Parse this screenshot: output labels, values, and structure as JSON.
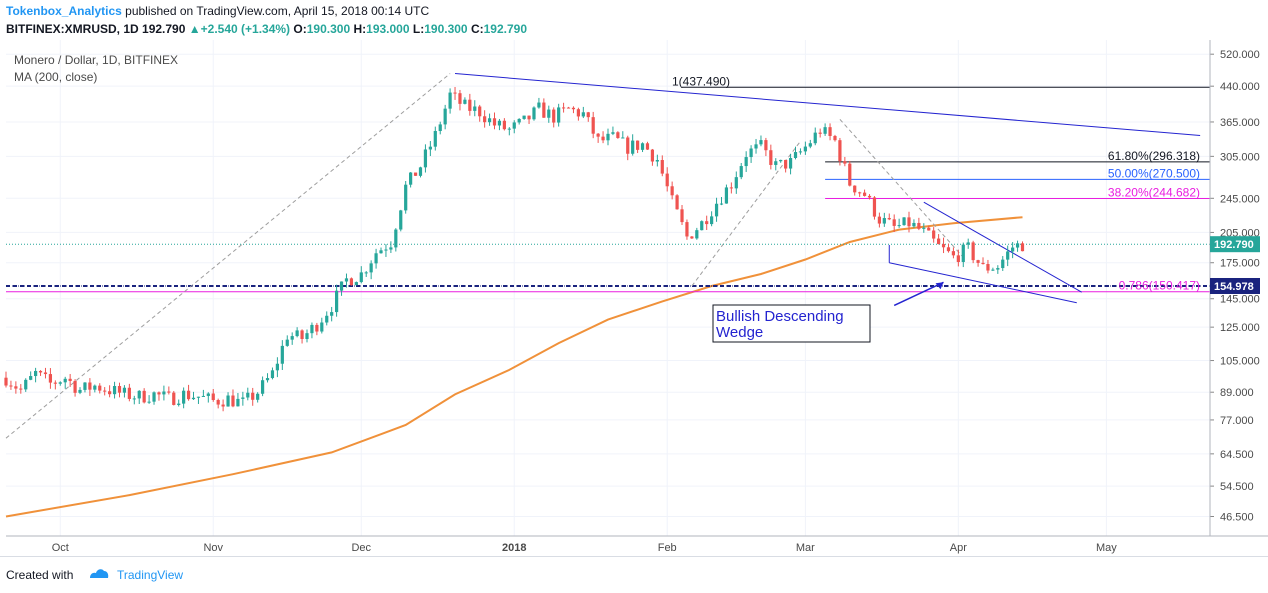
{
  "header": {
    "author": "Tokenbox_Analytics",
    "published_text": " published on TradingView.com, April 15, 2018 00:14 UTC",
    "symbol": "BITFINEX:XMRUSD, 1D",
    "price": "192.790",
    "change": "+2.540 (+1.34%)",
    "o_label": "O:",
    "o_value": "190.300",
    "h_label": "H:",
    "h_value": "193.000",
    "l_label": "L:",
    "l_value": "190.300",
    "c_label": "C:",
    "c_value": "192.790"
  },
  "footer": {
    "created_with": "Created with",
    "brand": "TradingView"
  },
  "colors": {
    "up": "#26a69a",
    "down": "#ef5350",
    "ma": "#f0913a",
    "trendline": "#2424d0",
    "fib_pink": "#e91ee0",
    "fib_blue": "#2962ff",
    "support": "#1a237e",
    "grid": "#f0f3fa"
  },
  "chart_data": {
    "type": "candlestick",
    "title": "Monero / Dollar, 1D, BITFINEX",
    "indicator": "MA (200, close)",
    "y_scale": "log",
    "y_ticks": [
      "520.000",
      "440.000",
      "365.000",
      "305.000",
      "245.000",
      "205.000",
      "175.000",
      "145.000",
      "125.000",
      "105.000",
      "89.000",
      "77.000",
      "64.500",
      "54.500",
      "46.500"
    ],
    "y_range": [
      42,
      560
    ],
    "x_ticks": [
      {
        "label": "Oct",
        "date": "2017-10-01"
      },
      {
        "label": "Nov",
        "date": "2017-11-01"
      },
      {
        "label": "Dec",
        "date": "2017-12-01"
      },
      {
        "label": "2018",
        "date": "2018-01-01"
      },
      {
        "label": "Feb",
        "date": "2018-02-01"
      },
      {
        "label": "Mar",
        "date": "2018-03-01"
      },
      {
        "label": "Apr",
        "date": "2018-04-01"
      },
      {
        "label": "May",
        "date": "2018-05-01"
      }
    ],
    "x_range": [
      "2017-09-20",
      "2018-05-22"
    ],
    "candles": [
      [
        "2017-09-20",
        96
      ],
      [
        "2017-09-23",
        90
      ],
      [
        "2017-09-26",
        98
      ],
      [
        "2017-09-29",
        93
      ],
      [
        "2017-10-02",
        96
      ],
      [
        "2017-10-05",
        90
      ],
      [
        "2017-10-08",
        92
      ],
      [
        "2017-10-11",
        90
      ],
      [
        "2017-10-14",
        88
      ],
      [
        "2017-10-17",
        87
      ],
      [
        "2017-10-20",
        88
      ],
      [
        "2017-10-23",
        86
      ],
      [
        "2017-10-26",
        88
      ],
      [
        "2017-10-29",
        87
      ],
      [
        "2017-11-01",
        85
      ],
      [
        "2017-11-04",
        86
      ],
      [
        "2017-11-07",
        84
      ],
      [
        "2017-11-10",
        89
      ],
      [
        "2017-11-13",
        98
      ],
      [
        "2017-11-16",
        120
      ],
      [
        "2017-11-19",
        118
      ],
      [
        "2017-11-22",
        127
      ],
      [
        "2017-11-25",
        140
      ],
      [
        "2017-11-28",
        160
      ],
      [
        "2017-12-01",
        165
      ],
      [
        "2017-12-04",
        185
      ],
      [
        "2017-12-07",
        195
      ],
      [
        "2017-12-10",
        260
      ],
      [
        "2017-12-13",
        290
      ],
      [
        "2017-12-16",
        340
      ],
      [
        "2017-12-19",
        420
      ],
      [
        "2017-12-22",
        395
      ],
      [
        "2017-12-25",
        385
      ],
      [
        "2017-12-28",
        360
      ],
      [
        "2017-12-31",
        350
      ],
      [
        "2018-01-03",
        365
      ],
      [
        "2018-01-06",
        390
      ],
      [
        "2018-01-09",
        375
      ],
      [
        "2018-01-12",
        390
      ],
      [
        "2018-01-15",
        380
      ],
      [
        "2018-01-18",
        330
      ],
      [
        "2018-01-21",
        335
      ],
      [
        "2018-01-24",
        320
      ],
      [
        "2018-01-27",
        325
      ],
      [
        "2018-01-30",
        300
      ],
      [
        "2018-02-02",
        240
      ],
      [
        "2018-02-05",
        200
      ],
      [
        "2018-02-08",
        215
      ],
      [
        "2018-02-11",
        240
      ],
      [
        "2018-02-14",
        265
      ],
      [
        "2018-02-17",
        310
      ],
      [
        "2018-02-20",
        320
      ],
      [
        "2018-02-23",
        290
      ],
      [
        "2018-02-26",
        295
      ],
      [
        "2018-03-01",
        320
      ],
      [
        "2018-03-04",
        350
      ],
      [
        "2018-03-07",
        330
      ],
      [
        "2018-03-10",
        265
      ],
      [
        "2018-03-13",
        250
      ],
      [
        "2018-03-16",
        220
      ],
      [
        "2018-03-19",
        210
      ],
      [
        "2018-03-22",
        215
      ],
      [
        "2018-03-25",
        205
      ],
      [
        "2018-03-28",
        190
      ],
      [
        "2018-03-31",
        180
      ],
      [
        "2018-04-03",
        188
      ],
      [
        "2018-04-06",
        170
      ],
      [
        "2018-04-09",
        172
      ],
      [
        "2018-04-12",
        190
      ],
      [
        "2018-04-14",
        192.79
      ]
    ],
    "ma_200": [
      [
        "2017-09-20",
        46.5
      ],
      [
        "2017-10-15",
        52
      ],
      [
        "2017-11-05",
        58
      ],
      [
        "2017-11-25",
        65
      ],
      [
        "2017-12-10",
        75
      ],
      [
        "2017-12-20",
        88
      ],
      [
        "2017-12-31",
        100
      ],
      [
        "2018-01-10",
        115
      ],
      [
        "2018-01-20",
        130
      ],
      [
        "2018-01-31",
        143
      ],
      [
        "2018-02-10",
        155
      ],
      [
        "2018-02-20",
        165
      ],
      [
        "2018-03-01",
        178
      ],
      [
        "2018-03-10",
        195
      ],
      [
        "2018-03-20",
        208
      ],
      [
        "2018-03-31",
        215
      ],
      [
        "2018-04-14",
        222
      ]
    ],
    "last_price": "192.790",
    "support_level": "154.978",
    "annotations": [
      {
        "text": "1(437.490)",
        "value": 437.49,
        "color": "#131722"
      },
      {
        "text": "61.80%(296.318)",
        "value": 296.318,
        "color": "#131722"
      },
      {
        "text": "50.00%(270.500)",
        "value": 270.5,
        "color": "#2962ff"
      },
      {
        "text": "38.20%(244.682)",
        "value": 244.682,
        "color": "#e91ee0"
      },
      {
        "text": "0.786(150.417)",
        "value": 150.417,
        "color": "#e91ee0"
      }
    ],
    "pattern_label_line1": "Bullish Descending",
    "pattern_label_line2": "Wedge"
  }
}
